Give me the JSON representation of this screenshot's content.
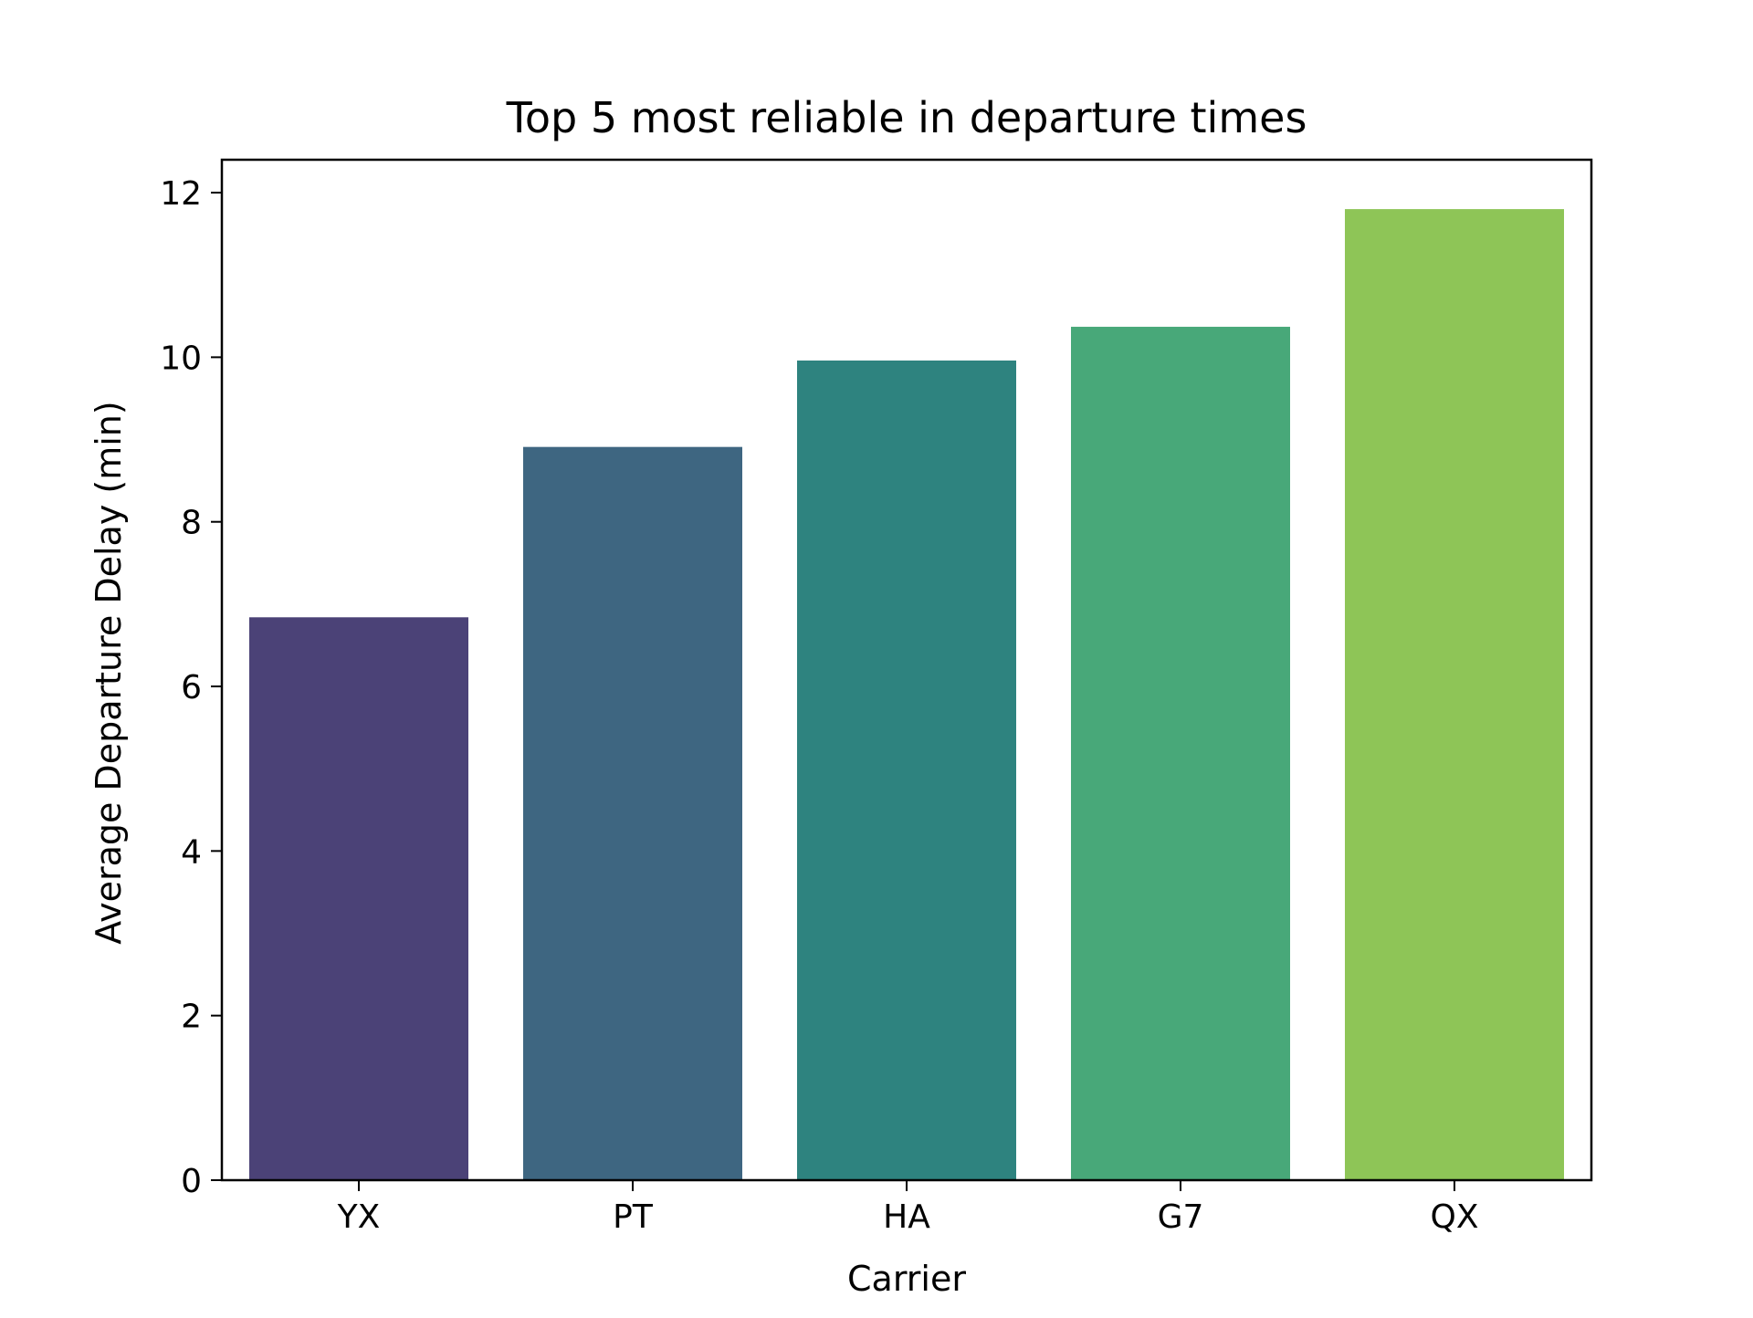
{
  "chart_data": {
    "type": "bar",
    "title": "Top 5 most reliable in departure times",
    "xlabel": "Carrier",
    "ylabel": "Average Departure Delay (min)",
    "categories": [
      "YX",
      "PT",
      "HA",
      "G7",
      "QX"
    ],
    "values": [
      6.84,
      8.91,
      9.96,
      10.37,
      11.8
    ],
    "colors": [
      "#4b4277",
      "#3e6681",
      "#2e837f",
      "#48a879",
      "#8ec557"
    ],
    "ylim": [
      0,
      12.4
    ],
    "yticks": [
      0,
      2,
      4,
      6,
      8,
      10,
      12
    ],
    "grid": false,
    "legend": "none"
  }
}
